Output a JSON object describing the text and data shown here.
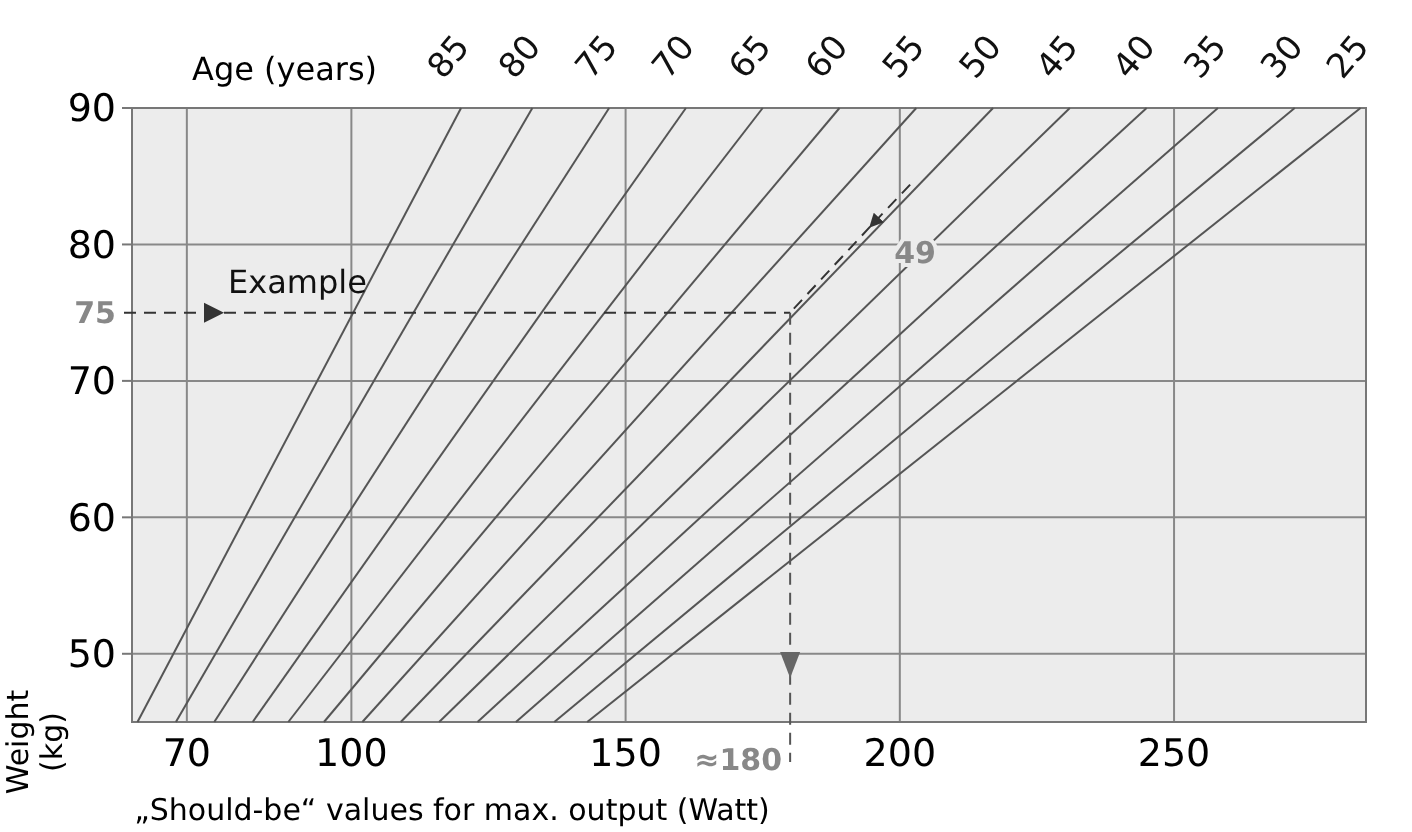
{
  "chart_data": {
    "type": "line",
    "xlabel": "„Should-be“ values for max. output (Watt)",
    "ylabel": "Weight (kg)",
    "legend_title": "Age (years)",
    "xlim": [
      60,
      285
    ],
    "ylim": [
      45,
      90
    ],
    "xticks": [
      70,
      100,
      150,
      200,
      250
    ],
    "yticks": [
      50,
      60,
      70,
      80,
      90
    ],
    "grid": true,
    "marker": "none",
    "line_style": "solid",
    "series": [
      {
        "name": "85",
        "color": "#555555",
        "x": [
          61,
          120
        ],
        "values": [
          45,
          90
        ]
      },
      {
        "name": "80",
        "color": "#555555",
        "x": [
          68,
          133
        ],
        "values": [
          45,
          90
        ]
      },
      {
        "name": "75",
        "color": "#555555",
        "x": [
          75,
          147
        ],
        "values": [
          45,
          90
        ]
      },
      {
        "name": "70",
        "color": "#555555",
        "x": [
          82,
          161
        ],
        "values": [
          45,
          90
        ]
      },
      {
        "name": "65",
        "color": "#555555",
        "x": [
          88.5,
          175
        ],
        "values": [
          45,
          90
        ]
      },
      {
        "name": "60",
        "color": "#555555",
        "x": [
          95,
          189
        ],
        "values": [
          45,
          90
        ]
      },
      {
        "name": "55",
        "color": "#555555",
        "x": [
          102,
          203
        ],
        "values": [
          45,
          90
        ]
      },
      {
        "name": "50",
        "color": "#555555",
        "x": [
          109,
          217
        ],
        "values": [
          45,
          90
        ]
      },
      {
        "name": "45",
        "color": "#555555",
        "x": [
          116,
          231
        ],
        "values": [
          45,
          90
        ]
      },
      {
        "name": "40",
        "color": "#555555",
        "x": [
          123,
          245
        ],
        "values": [
          45,
          90
        ]
      },
      {
        "name": "35",
        "color": "#555555",
        "x": [
          130,
          258
        ],
        "values": [
          45,
          90
        ]
      },
      {
        "name": "30",
        "color": "#555555",
        "x": [
          137,
          272
        ],
        "values": [
          45,
          90
        ]
      },
      {
        "name": "25",
        "color": "#555555",
        "x": [
          143,
          284
        ],
        "values": [
          45,
          90
        ]
      }
    ],
    "ref_lines": [
      {
        "axis": "y",
        "value": 75,
        "label": "75",
        "line_style": "dashed",
        "color": "#333333"
      },
      {
        "axis": "x",
        "value": 180,
        "label": "≈180",
        "line_style": "dashed",
        "color": "#555555"
      }
    ],
    "annotations": [
      "Example",
      {
        "text": "49",
        "x": 180,
        "y": 75
      }
    ]
  }
}
